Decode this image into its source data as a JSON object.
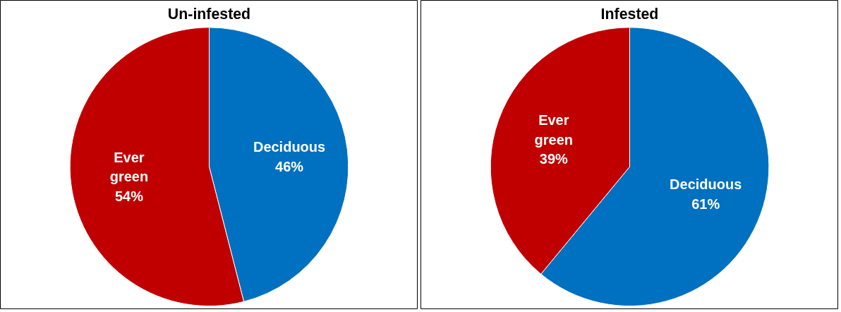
{
  "chart_data": [
    {
      "type": "pie",
      "title": "Un-infested",
      "categories": [
        "Deciduous",
        "Ever green"
      ],
      "values": [
        46,
        54
      ],
      "colors": [
        "#0070c0",
        "#c00000"
      ],
      "value_labels": [
        "46%",
        "54%"
      ]
    },
    {
      "type": "pie",
      "title": "Infested",
      "categories": [
        "Deciduous",
        "Ever green"
      ],
      "values": [
        61,
        39
      ],
      "colors": [
        "#0070c0",
        "#c00000"
      ],
      "value_labels": [
        "61%",
        "39%"
      ]
    }
  ]
}
